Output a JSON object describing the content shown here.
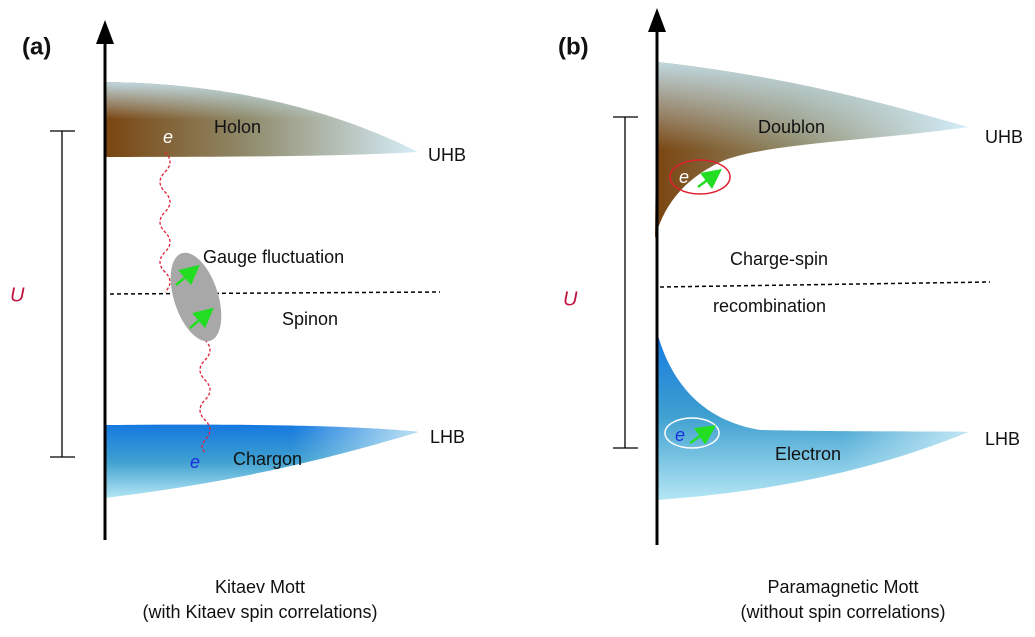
{
  "panels": [
    {
      "tag": "(a)",
      "upper_band": "Holon",
      "upper_name": "UHB",
      "upper_e": "e",
      "middle": "Gauge fluctuation",
      "middle_line": "Spinon",
      "gap": "U",
      "lower_band": "Chargon",
      "lower_name": "LHB",
      "lower_e": "e",
      "caption": [
        "Kitaev Mott",
        "(with Kitaev spin correlations)"
      ]
    },
    {
      "tag": "(b)",
      "upper_band": "Doublon",
      "upper_name": "UHB",
      "upper_e": "e",
      "middle": "Charge-spin",
      "middle_line": "recombination",
      "gap": "U",
      "lower_band": "Electron",
      "lower_name": "LHB",
      "lower_e": "e",
      "caption": [
        "Paramagnetic Mott",
        "(without spin correlations)"
      ]
    }
  ]
}
